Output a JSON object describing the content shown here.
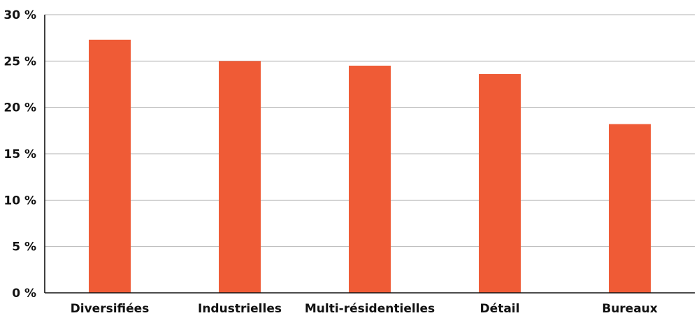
{
  "chart_data": {
    "type": "bar",
    "categories": [
      "Diversifiées",
      "Industrielles",
      "Multi-résidentielles",
      "Détail",
      "Bureaux"
    ],
    "values": [
      27.3,
      25.0,
      24.5,
      23.6,
      18.2
    ],
    "ylim": [
      0,
      30
    ],
    "yticks": [
      0,
      5,
      10,
      15,
      20,
      25,
      30
    ],
    "ytick_labels": [
      "0 %",
      "5 %",
      "10 %",
      "15 %",
      "20 %",
      "25 %",
      "30 %"
    ],
    "grid": true,
    "bar_color": "#ef5b36",
    "title": "",
    "xlabel": "",
    "ylabel": ""
  }
}
